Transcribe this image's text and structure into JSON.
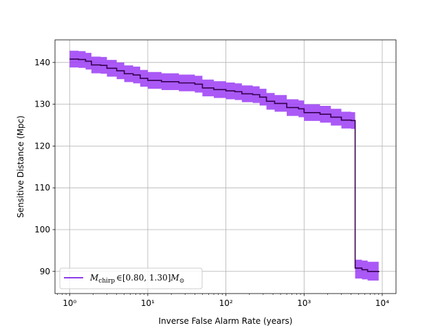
{
  "chart_data": {
    "type": "line",
    "xscale": "log",
    "xlim": [
      0.65,
      15000
    ],
    "ylim": [
      84.7,
      145.4
    ],
    "xlabel": "Inverse False Alarm Rate (years)",
    "ylabel": "Sensitive Distance (Mpc)",
    "grid": true,
    "legend_position": "lower-left",
    "x_ticks": [
      {
        "value": 1,
        "label": "10⁰"
      },
      {
        "value": 10,
        "label": "10¹"
      },
      {
        "value": 100,
        "label": "10²"
      },
      {
        "value": 1000,
        "label": "10³"
      },
      {
        "value": 10000,
        "label": "10⁴"
      }
    ],
    "y_ticks": [
      90,
      100,
      110,
      120,
      130,
      140
    ],
    "series": [
      {
        "name": "M_chirp ∈ [0.80, 1.30] M_⊙",
        "legend_label": {
          "symbol": "M",
          "subscript": "chirp",
          "interval": "∈[0.80, 1.30]",
          "unit_symbol": "M",
          "unit_subscript": "⊙"
        },
        "line_color": "#35004f",
        "band_color": "#9b3cf5",
        "legend_line_color": "#7b1ee8",
        "points": [
          {
            "x": 1.0,
            "y": 140.8,
            "lo": 138.8,
            "hi": 142.8
          },
          {
            "x": 1.3,
            "y": 140.7,
            "lo": 138.7,
            "hi": 142.7
          },
          {
            "x": 1.6,
            "y": 140.3,
            "lo": 138.3,
            "hi": 142.3
          },
          {
            "x": 1.9,
            "y": 139.4,
            "lo": 137.4,
            "hi": 141.4
          },
          {
            "x": 2.5,
            "y": 139.3,
            "lo": 137.3,
            "hi": 141.3
          },
          {
            "x": 3.0,
            "y": 138.6,
            "lo": 136.6,
            "hi": 140.6
          },
          {
            "x": 4.0,
            "y": 138.0,
            "lo": 136.0,
            "hi": 140.0
          },
          {
            "x": 5.0,
            "y": 137.3,
            "lo": 135.3,
            "hi": 139.3
          },
          {
            "x": 6.5,
            "y": 137.0,
            "lo": 135.0,
            "hi": 139.0
          },
          {
            "x": 8.0,
            "y": 136.2,
            "lo": 134.2,
            "hi": 138.2
          },
          {
            "x": 10,
            "y": 135.7,
            "lo": 133.7,
            "hi": 137.7
          },
          {
            "x": 15,
            "y": 135.4,
            "lo": 133.4,
            "hi": 137.4
          },
          {
            "x": 25,
            "y": 135.1,
            "lo": 133.1,
            "hi": 137.1
          },
          {
            "x": 40,
            "y": 134.8,
            "lo": 132.8,
            "hi": 136.8
          },
          {
            "x": 50,
            "y": 133.9,
            "lo": 131.9,
            "hi": 135.9
          },
          {
            "x": 70,
            "y": 133.5,
            "lo": 131.5,
            "hi": 135.5
          },
          {
            "x": 100,
            "y": 133.2,
            "lo": 131.2,
            "hi": 135.2
          },
          {
            "x": 130,
            "y": 133.0,
            "lo": 131.0,
            "hi": 135.0
          },
          {
            "x": 160,
            "y": 132.5,
            "lo": 130.5,
            "hi": 134.5
          },
          {
            "x": 220,
            "y": 132.3,
            "lo": 130.3,
            "hi": 134.3
          },
          {
            "x": 270,
            "y": 131.7,
            "lo": 129.7,
            "hi": 133.7
          },
          {
            "x": 330,
            "y": 130.7,
            "lo": 128.7,
            "hi": 132.7
          },
          {
            "x": 420,
            "y": 130.2,
            "lo": 128.2,
            "hi": 132.2
          },
          {
            "x": 600,
            "y": 129.2,
            "lo": 127.2,
            "hi": 131.2
          },
          {
            "x": 850,
            "y": 128.9,
            "lo": 126.9,
            "hi": 130.9
          },
          {
            "x": 1000,
            "y": 128.0,
            "lo": 126.0,
            "hi": 130.0
          },
          {
            "x": 1600,
            "y": 127.6,
            "lo": 125.6,
            "hi": 129.6
          },
          {
            "x": 2200,
            "y": 126.9,
            "lo": 124.9,
            "hi": 128.9
          },
          {
            "x": 3000,
            "y": 126.2,
            "lo": 124.2,
            "hi": 128.2
          },
          {
            "x": 4000,
            "y": 126.1,
            "lo": 124.1,
            "hi": 128.1
          },
          {
            "x": 4500,
            "y": 90.8,
            "lo": 88.3,
            "hi": 92.8
          },
          {
            "x": 5500,
            "y": 90.4,
            "lo": 88.1,
            "hi": 92.6
          },
          {
            "x": 6500,
            "y": 90.0,
            "lo": 87.8,
            "hi": 92.3
          },
          {
            "x": 9000,
            "y": 89.8,
            "lo": 87.7,
            "hi": 92.3
          }
        ]
      }
    ]
  }
}
